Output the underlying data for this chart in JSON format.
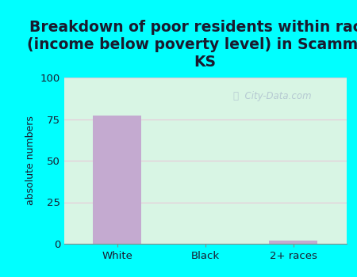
{
  "title": "Breakdown of poor residents within races\n(income below poverty level) in Scammon,\nKS",
  "categories": [
    "White",
    "Black",
    "2+ races"
  ],
  "values": [
    77,
    0,
    2
  ],
  "bar_color": "#c4aad0",
  "ylabel": "absolute numbers",
  "ylim": [
    0,
    100
  ],
  "yticks": [
    0,
    25,
    50,
    75,
    100
  ],
  "background_outer": "#00ffff",
  "background_inner": "#d8f5e4",
  "grid_color": "#e8c8d8",
  "watermark": "City-Data.com",
  "title_fontsize": 13.5,
  "title_color": "#1a1a2e",
  "axis_label_fontsize": 9,
  "tick_fontsize": 9.5,
  "tick_color": "#1a1a2e"
}
